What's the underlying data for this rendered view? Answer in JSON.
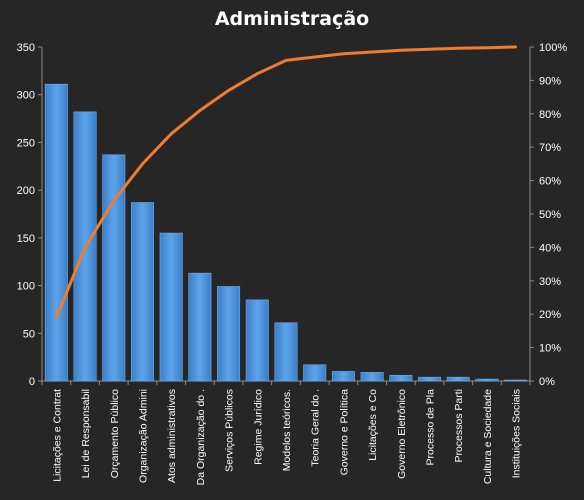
{
  "chart_data": {
    "type": "bar",
    "title": "Administração",
    "categories": [
      "Licitações e Contrat",
      "Lei de Responsabil",
      "Orçamento Público",
      "Organização Admini",
      "Atos administrativos",
      "Da Organização do .",
      "Serviços Públicos",
      "Regime Jurídico",
      "Modelos teóricos.",
      "Teoria Geral do .",
      "Governo e Política",
      "Licitações e Co",
      "Governo Eletrônico",
      "Processo de Pla",
      "Processos Parti",
      "Cultura e Sociedade",
      "Instituições Sociais"
    ],
    "series": [
      {
        "type": "bar",
        "axis": "left",
        "color": "#4f95de",
        "values": [
          311,
          282,
          237,
          187,
          155,
          113,
          99,
          85,
          61,
          17,
          10,
          9,
          6,
          4,
          4,
          2,
          1
        ]
      },
      {
        "type": "line",
        "axis": "right",
        "color": "#ed7d31",
        "values": [
          0.19,
          0.4,
          0.54,
          0.65,
          0.74,
          0.81,
          0.87,
          0.92,
          0.96,
          0.97,
          0.98,
          0.985,
          0.99,
          0.993,
          0.996,
          0.998,
          1.0
        ]
      }
    ],
    "ylim": [
      0,
      350
    ],
    "yticks": [
      "0",
      "50",
      "100",
      "150",
      "200",
      "250",
      "300",
      "350"
    ],
    "y2lim": [
      0,
      1
    ],
    "y2ticks": [
      "0%",
      "10%",
      "20%",
      "30%",
      "40%",
      "50%",
      "60%",
      "70%",
      "80%",
      "90%",
      "100%"
    ],
    "grid": false,
    "legend": "none",
    "background_color": "#262626",
    "text_color": "#ffffff"
  }
}
